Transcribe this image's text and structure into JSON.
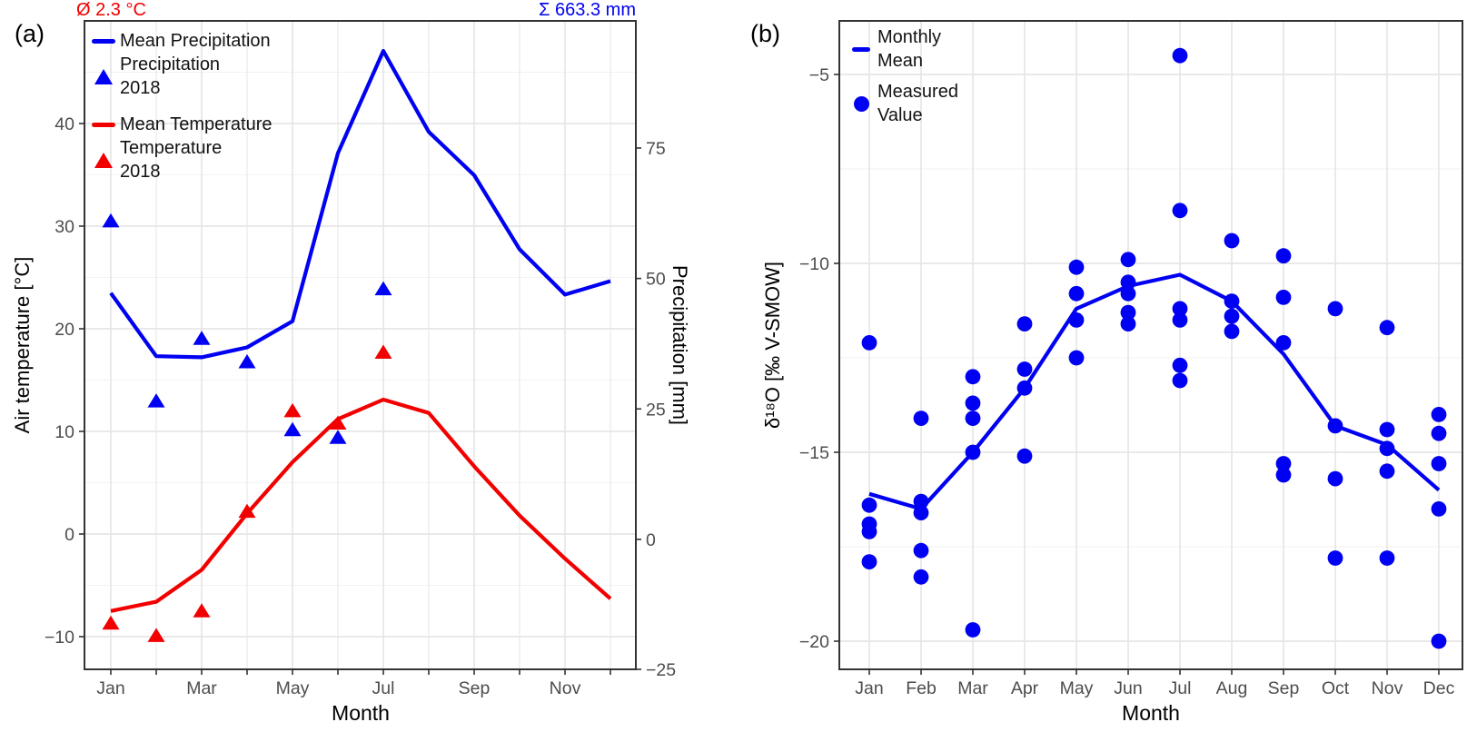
{
  "colors": {
    "series_blue": "#0000f2",
    "series_red": "#f20000",
    "tick_label": "#4d4d4d",
    "axis_text": "#000000",
    "panel_border": "#333333",
    "grid_major": "#e6e6e6",
    "grid_minor": "#f2f2f2",
    "background": "#ffffff"
  },
  "panels": {
    "a": {
      "label": "(a)",
      "legend": [
        {
          "glyph": "blue-line",
          "label": "Mean Precipitation"
        },
        {
          "glyph": "blue-triangle",
          "line1": "Precipitation",
          "line2": "2018"
        },
        {
          "glyph": "red-line",
          "label": "Mean Temperature"
        },
        {
          "glyph": "red-triangle",
          "line1": "Temperature",
          "line2": "2018"
        }
      ]
    },
    "b": {
      "label": "(b)",
      "legend": [
        {
          "glyph": "blue-line",
          "line1": "Monthly",
          "line2": "Mean"
        },
        {
          "glyph": "blue-dot",
          "line1": "Measured",
          "line2": "Value"
        }
      ]
    }
  },
  "chart_data": [
    {
      "panel": "a",
      "type": "line",
      "subtype": "dual-axis climograph with 2018 scatter markers",
      "categories": [
        "Jan",
        "Feb",
        "Mar",
        "Apr",
        "May",
        "Jun",
        "Jul",
        "Aug",
        "Sep",
        "Oct",
        "Nov",
        "Dec"
      ],
      "x_tick_labels": [
        "Jan",
        "",
        "Mar",
        "",
        "May",
        "",
        "Jul",
        "",
        "Sep",
        "",
        "Nov",
        ""
      ],
      "xlabel": "Month",
      "annotations": {
        "mean_temperature": "Ø 2.3 °C",
        "sum_precipitation": "Σ 663.3 mm"
      },
      "axes": {
        "left": {
          "title": "Air temperature [°C]",
          "ticks": [
            40,
            30,
            20,
            10,
            0,
            -10
          ],
          "minor": [
            45,
            35,
            25,
            15,
            5,
            -5
          ],
          "range": [
            -13.2,
            50
          ]
        },
        "right": {
          "title": "Precipitation [mm]",
          "ticks": [
            75,
            50,
            25,
            0,
            -25
          ],
          "range": [
            -25.1,
            99.4
          ]
        }
      },
      "grid": true,
      "legend_position": "top-left-inside",
      "series": [
        {
          "name": "Mean Precipitation",
          "type": "line",
          "axis": "right",
          "color": "#0000f2",
          "values": [
            47.2,
            35.1,
            34.9,
            36.8,
            41.8,
            74.0,
            93.6,
            78.1,
            69.8,
            55.6,
            46.9,
            49.5
          ]
        },
        {
          "name": "Precipitation 2018",
          "type": "triangle",
          "axis": "right",
          "color": "#0000f2",
          "values": [
            61,
            26.5,
            38.5,
            34,
            21,
            19.5,
            48,
            null,
            null,
            null,
            null,
            null
          ]
        },
        {
          "name": "Mean Temperature",
          "type": "line",
          "axis": "left",
          "color": "#f20000",
          "values": [
            -7.5,
            -6.6,
            -3.5,
            2.0,
            7.0,
            11.2,
            13.1,
            11.8,
            6.6,
            1.8,
            -2.4,
            -6.3
          ]
        },
        {
          "name": "Temperature 2018",
          "type": "triangle",
          "axis": "left",
          "color": "#f20000",
          "values": [
            -8.7,
            -9.9,
            -7.5,
            2.2,
            12.0,
            10.8,
            17.7,
            null,
            null,
            null,
            null,
            null
          ]
        }
      ]
    },
    {
      "panel": "b",
      "type": "scatter",
      "subtype": "monthly d18O measurements with monthly-mean line",
      "categories": [
        "Jan",
        "Feb",
        "Mar",
        "Apr",
        "May",
        "Jun",
        "Jul",
        "Aug",
        "Sep",
        "Oct",
        "Nov",
        "Dec"
      ],
      "x_tick_labels": [
        "Jan",
        "Feb",
        "Mar",
        "Apr",
        "May",
        "Jun",
        "Jul",
        "Aug",
        "Sep",
        "Oct",
        "Nov",
        "Dec"
      ],
      "xlabel": "Month",
      "axes": {
        "left": {
          "title": "δ¹⁸O [‰ V-SMOW]",
          "ticks": [
            -5,
            -10,
            -15,
            -20
          ],
          "minor": [
            -7.5,
            -12.5,
            -17.5
          ],
          "range": [
            -21.3,
            -3.6
          ]
        }
      },
      "grid": true,
      "legend_position": "top-left-inside",
      "series": [
        {
          "name": "Monthly Mean",
          "type": "line",
          "color": "#0000f2",
          "values": [
            -16.1,
            -16.5,
            -15.0,
            -13.3,
            -11.2,
            -10.6,
            -10.3,
            -11.0,
            -12.4,
            -14.3,
            -14.8,
            -16.0
          ]
        },
        {
          "name": "Measured Value",
          "type": "scatter",
          "color": "#0000f2",
          "values_by_month": [
            [
              -12.1,
              -16.4,
              -16.9,
              -17.1,
              -17.9
            ],
            [
              -14.1,
              -16.3,
              -16.6,
              -17.6,
              -18.3
            ],
            [
              -13.0,
              -13.7,
              -14.1,
              -15.0,
              -19.7
            ],
            [
              -11.6,
              -12.8,
              -13.3,
              -15.1
            ],
            [
              -10.1,
              -10.8,
              -11.5,
              -12.5
            ],
            [
              -9.9,
              -10.5,
              -10.8,
              -11.3,
              -11.6
            ],
            [
              -4.5,
              -8.6,
              -11.2,
              -11.5,
              -12.7,
              -13.1
            ],
            [
              -9.4,
              -11.0,
              -11.4,
              -11.8
            ],
            [
              -9.8,
              -10.9,
              -12.1,
              -15.3,
              -15.6
            ],
            [
              -11.2,
              -14.3,
              -15.7,
              -17.8
            ],
            [
              -11.7,
              -14.4,
              -14.9,
              -15.5,
              -17.8
            ],
            [
              -14.0,
              -14.5,
              -15.3,
              -16.5,
              -20.0
            ]
          ]
        }
      ]
    }
  ]
}
